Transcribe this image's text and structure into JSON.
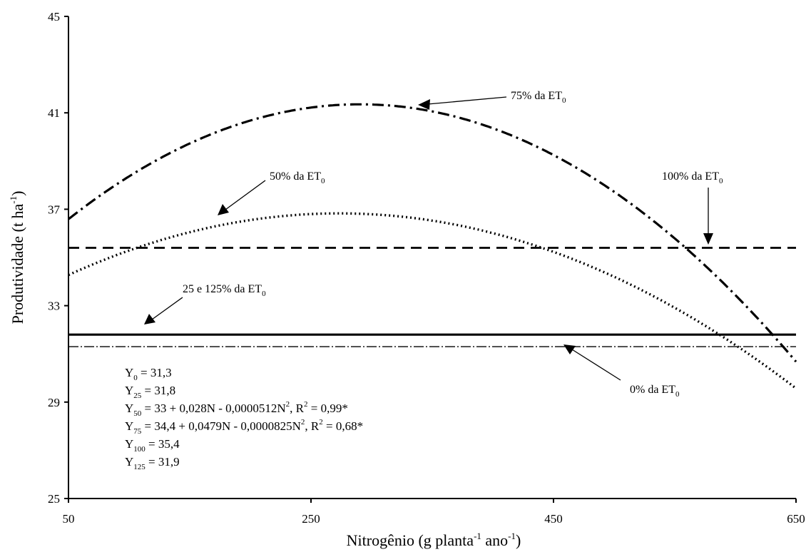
{
  "chart_data": {
    "type": "line",
    "xlabel": {
      "main": "Nitrogênio (g planta",
      "sup1": "-1",
      "mid": " ano",
      "sup2": "-1",
      "end": ")"
    },
    "ylabel": {
      "main": "Produtividade (t ha",
      "sup": "-1",
      "end": ")"
    },
    "xlim": [
      50,
      650
    ],
    "ylim": [
      25,
      45
    ],
    "xticks": [
      "50",
      "250",
      "450",
      "650"
    ],
    "yticks": [
      "25",
      "29",
      "33",
      "37",
      "41",
      "45"
    ],
    "grid": false,
    "series": [
      {
        "key": "y0",
        "kind": "constant",
        "value": 31.3,
        "style": "dashdot-thin"
      },
      {
        "key": "y25_125",
        "kind": "constant",
        "value": 31.8,
        "style": "solid"
      },
      {
        "key": "y50",
        "kind": "quadratic",
        "coef": [
          33,
          0.028,
          -5.12e-05
        ],
        "style": "dotted"
      },
      {
        "key": "y75",
        "kind": "quadratic",
        "coef": [
          34.4,
          0.0479,
          -8.25e-05
        ],
        "style": "dashdot"
      },
      {
        "key": "y100",
        "kind": "constant",
        "value": 35.4,
        "style": "dashed"
      }
    ],
    "annotations": {
      "a75": {
        "text": "75% da ET",
        "sub": "0"
      },
      "a50": {
        "text": "50% da ET",
        "sub": "0"
      },
      "a100": {
        "text": "100% da ET",
        "sub": "0"
      },
      "a25": {
        "text": "25 e 125% da ET",
        "sub": "0"
      },
      "a0": {
        "text": "0% da ET",
        "sub": "0"
      }
    },
    "equations": [
      {
        "sub": "0",
        "rhs": " = 31,3"
      },
      {
        "sub": "25",
        "rhs": " = 31,8"
      },
      {
        "sub": "50",
        "rhs": " = 33 + 0,028N - 0,0000512N",
        "sup": "2",
        "rhs2": ", R",
        "sup2": "2",
        "rhs3": " = 0,99*"
      },
      {
        "sub": "75",
        "rhs": " = 34,4 + 0,0479N - 0,0000825N",
        "sup": "2",
        "rhs2": ", R",
        "sup2": "2",
        "rhs3": " = 0,68*"
      },
      {
        "sub": "100",
        "rhs": " = 35,4"
      },
      {
        "sub": "125",
        "rhs": " = 31,9"
      }
    ]
  }
}
